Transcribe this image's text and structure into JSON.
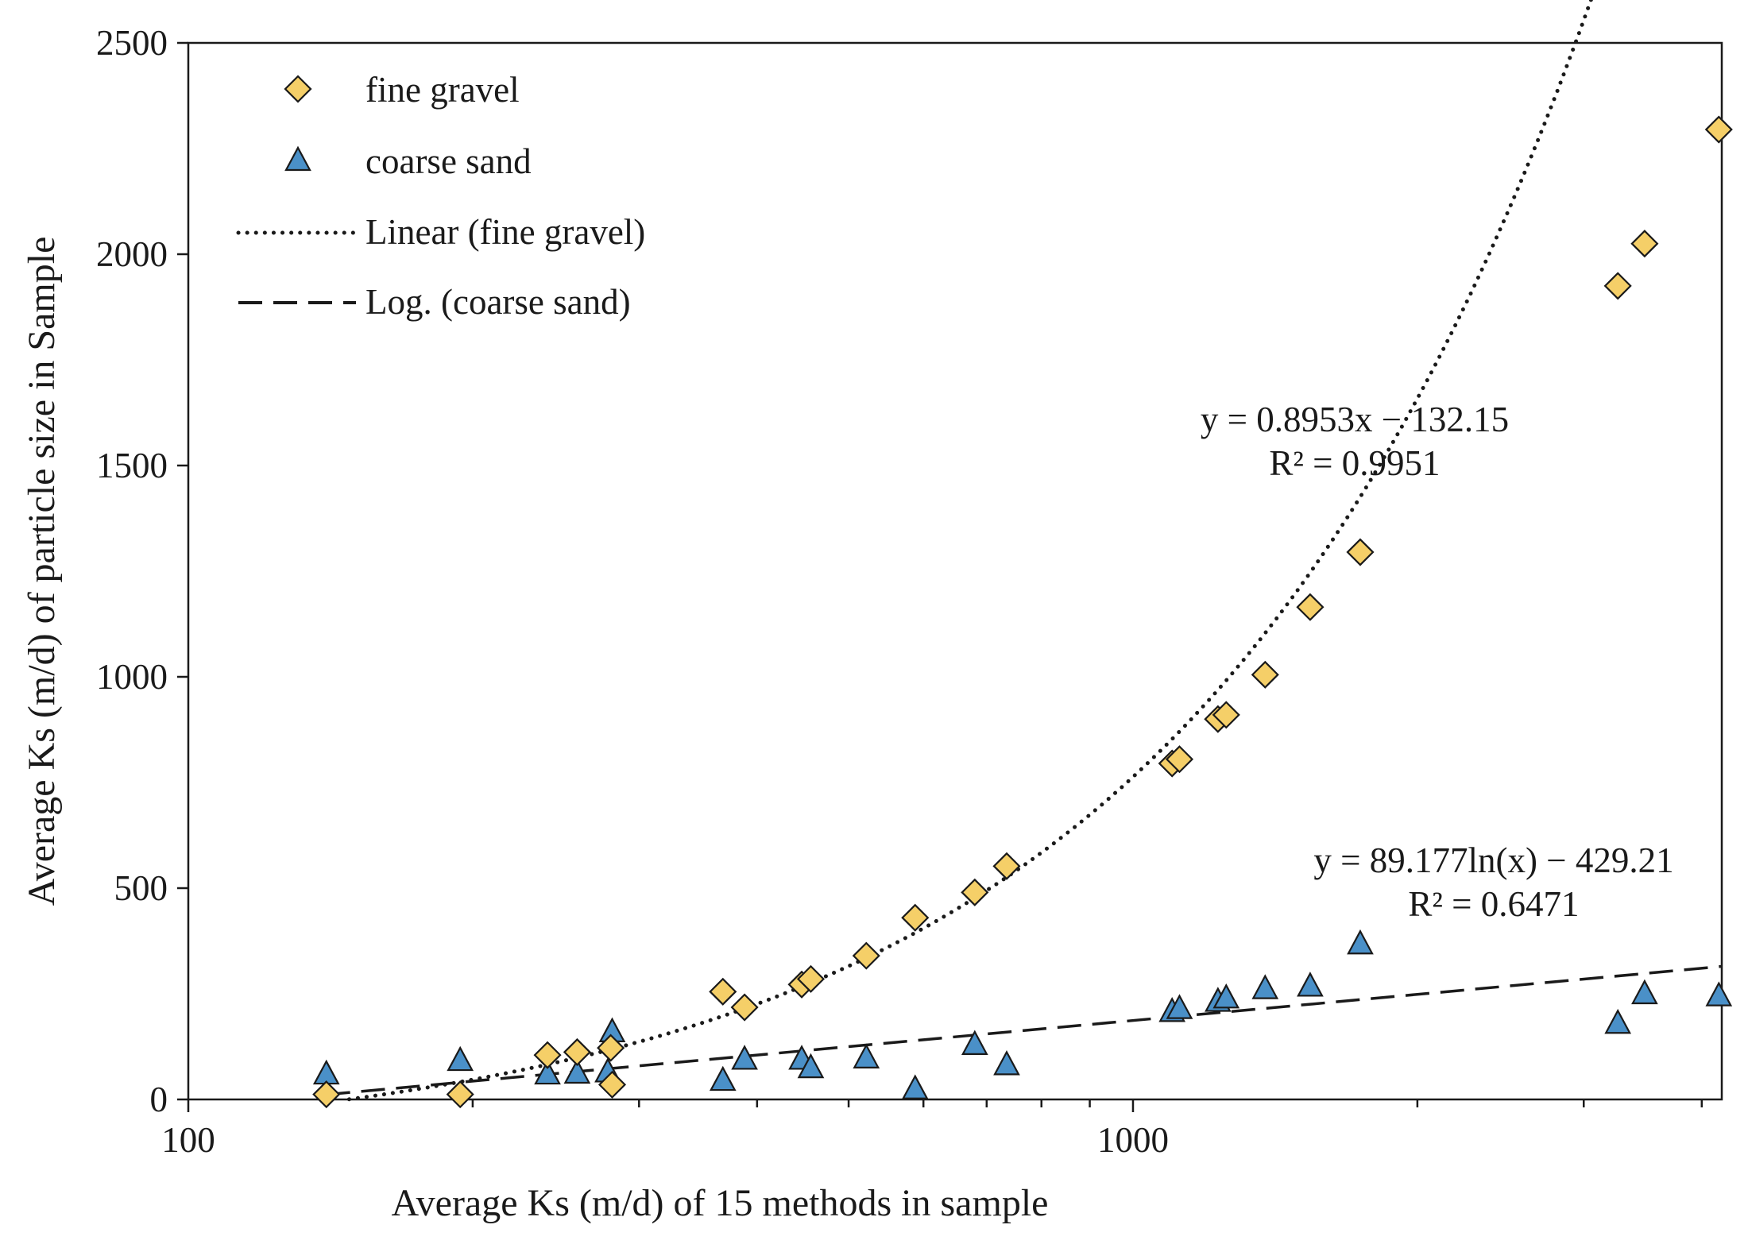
{
  "chart_data": {
    "type": "scatter",
    "title": "",
    "xlabel": "Average Ks (m/d) of 15 methods in sample",
    "ylabel": "Average Ks (m/d) of particle size in Sample",
    "xscale": "log",
    "xlim": [
      100,
      4200
    ],
    "ylim": [
      0,
      2500
    ],
    "x_tick_labels": [
      "100",
      "1000"
    ],
    "x_tick_values": [
      100,
      1000
    ],
    "y_tick_labels": [
      "0",
      "500",
      "1000",
      "1500",
      "2000",
      "2500"
    ],
    "y_tick_values": [
      0,
      500,
      1000,
      1500,
      2000,
      2500
    ],
    "legend_position": "top-left",
    "colors": {
      "fine_gravel": "#f5cf68",
      "coarse_sand": "#4a90c8",
      "marker_stroke": "#1a1a1a",
      "trend": "#1a1a1a",
      "axis": "#1a1a1a"
    },
    "series": [
      {
        "name": "fine gravel",
        "marker": "diamond",
        "points": [
          [
            140,
            12
          ],
          [
            194,
            12
          ],
          [
            240,
            105
          ],
          [
            258,
            112
          ],
          [
            280,
            122
          ],
          [
            281,
            35
          ],
          [
            368,
            255
          ],
          [
            388,
            218
          ],
          [
            446,
            272
          ],
          [
            456,
            285
          ],
          [
            522,
            340
          ],
          [
            588,
            430
          ],
          [
            680,
            490
          ],
          [
            735,
            552
          ],
          [
            1100,
            795
          ],
          [
            1120,
            805
          ],
          [
            1230,
            900
          ],
          [
            1255,
            910
          ],
          [
            1380,
            1005
          ],
          [
            1540,
            1165
          ],
          [
            1740,
            1295
          ],
          [
            3260,
            1925
          ],
          [
            3480,
            2025
          ],
          [
            4170,
            2295
          ]
        ]
      },
      {
        "name": "coarse sand",
        "marker": "triangle",
        "points": [
          [
            140,
            60
          ],
          [
            194,
            92
          ],
          [
            240,
            60
          ],
          [
            258,
            62
          ],
          [
            278,
            65
          ],
          [
            281,
            160
          ],
          [
            368,
            45
          ],
          [
            388,
            95
          ],
          [
            446,
            95
          ],
          [
            456,
            75
          ],
          [
            522,
            98
          ],
          [
            588,
            25
          ],
          [
            680,
            130
          ],
          [
            735,
            82
          ],
          [
            1100,
            208
          ],
          [
            1120,
            215
          ],
          [
            1230,
            232
          ],
          [
            1255,
            240
          ],
          [
            1380,
            262
          ],
          [
            1540,
            268
          ],
          [
            1740,
            368
          ],
          [
            3260,
            180
          ],
          [
            3480,
            250
          ],
          [
            4170,
            245
          ]
        ]
      }
    ],
    "trendlines": [
      {
        "name": "Linear (fine gravel)",
        "style": "dotted",
        "fit_series": "fine gravel",
        "equation": "y = 0.8953x − 132.15",
        "r_squared": "R² = 0.9951",
        "slope": 0.8953,
        "intercept": -132.15,
        "x_range": [
          148,
          4170
        ]
      },
      {
        "name": "Log. (coarse sand)",
        "style": "dashed",
        "fit_series": "coarse sand",
        "equation": "y = 89.177ln(x) − 429.21",
        "r_squared": "R² = 0.6471",
        "a": 89.177,
        "b": -429.21,
        "x_range": [
          140,
          4200
        ]
      }
    ],
    "legend": [
      {
        "label": "fine gravel",
        "symbol": "diamond"
      },
      {
        "label": "coarse sand",
        "symbol": "triangle"
      },
      {
        "label": "Linear (fine gravel)",
        "symbol": "dotted-line"
      },
      {
        "label": "Log. (coarse sand)",
        "symbol": "dashed-line"
      }
    ]
  }
}
